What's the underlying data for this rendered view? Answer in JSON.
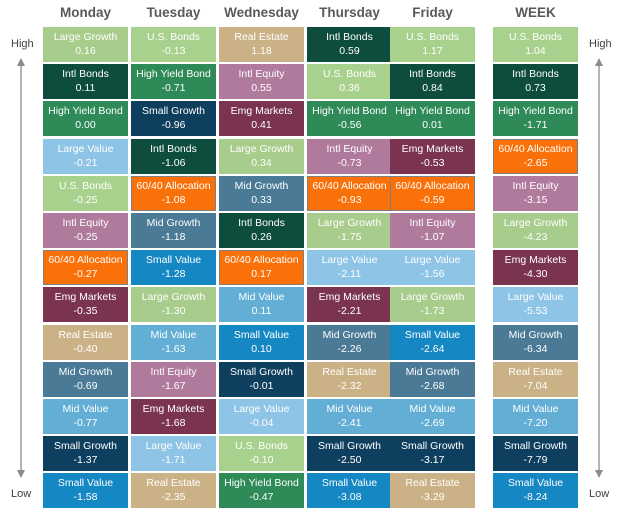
{
  "chart_data": {
    "type": "table",
    "columns": [
      "Monday",
      "Tuesday",
      "Wednesday",
      "Thursday",
      "Friday",
      "WEEK"
    ],
    "axis_labels": {
      "top": "High",
      "bottom": "Low"
    },
    "colors": {
      "Large Growth": {
        "bg": "#a8cc8c",
        "fg": "#ffffff"
      },
      "U.S. Bonds": {
        "bg": "#a9d18e",
        "fg": "#ffffff"
      },
      "Intl Bonds": {
        "bg": "#0e4d3d",
        "fg": "#ffffff"
      },
      "High Yield Bond": {
        "bg": "#2e8a57",
        "fg": "#ffffff"
      },
      "Large Value": {
        "bg": "#8ec4e6",
        "fg": "#ffffff"
      },
      "Intl Equity": {
        "bg": "#b07a9c",
        "fg": "#ffffff"
      },
      "60/40 Allocation": {
        "bg": "#fa7109",
        "fg": "#ffffff"
      },
      "Emg Markets": {
        "bg": "#7a3450",
        "fg": "#ffffff"
      },
      "Real Estate": {
        "bg": "#cbb286",
        "fg": "#ffffff"
      },
      "Mid Growth": {
        "bg": "#4a7a96",
        "fg": "#ffffff"
      },
      "Mid Value": {
        "bg": "#62aed4",
        "fg": "#ffffff"
      },
      "Small Growth": {
        "bg": "#0f3f5e",
        "fg": "#ffffff"
      },
      "Small Value": {
        "bg": "#1587c3",
        "fg": "#ffffff"
      }
    },
    "cells": [
      [
        [
          "Large Growth",
          "0.16"
        ],
        [
          "Intl Bonds",
          "0.11"
        ],
        [
          "High Yield Bond",
          "0.00"
        ],
        [
          "Large Value",
          "-0.21"
        ],
        [
          "U.S. Bonds",
          "-0.25"
        ],
        [
          "Intl Equity",
          "-0.25"
        ],
        [
          "60/40 Allocation",
          "-0.27"
        ],
        [
          "Emg Markets",
          "-0.35"
        ],
        [
          "Real Estate",
          "-0.40"
        ],
        [
          "Mid Growth",
          "-0.69"
        ],
        [
          "Mid Value",
          "-0.77"
        ],
        [
          "Small Growth",
          "-1.37"
        ],
        [
          "Small Value",
          "-1.58"
        ]
      ],
      [
        [
          "U.S. Bonds",
          "-0.13"
        ],
        [
          "High Yield Bond",
          "-0.71"
        ],
        [
          "Small Growth",
          "-0.96"
        ],
        [
          "Intl Bonds",
          "-1.06"
        ],
        [
          "60/40 Allocation",
          "-1.08"
        ],
        [
          "Mid Growth",
          "-1.18"
        ],
        [
          "Small Value",
          "-1.28"
        ],
        [
          "Large Growth",
          "-1.30"
        ],
        [
          "Mid Value",
          "-1.63"
        ],
        [
          "Intl Equity",
          "-1.67"
        ],
        [
          "Emg Markets",
          "-1.68"
        ],
        [
          "Large Value",
          "-1.71"
        ],
        [
          "Real Estate",
          "-2.35"
        ]
      ],
      [
        [
          "Real Estate",
          "1.18"
        ],
        [
          "Intl Equity",
          "0.55"
        ],
        [
          "Emg Markets",
          "0.41"
        ],
        [
          "Large Growth",
          "0.34"
        ],
        [
          "Mid Growth",
          "0.33"
        ],
        [
          "Intl Bonds",
          "0.26"
        ],
        [
          "60/40 Allocation",
          "0.17"
        ],
        [
          "Mid Value",
          "0.11"
        ],
        [
          "Small Value",
          "0.10"
        ],
        [
          "Small Growth",
          "-0.01"
        ],
        [
          "Large Value",
          "-0.04"
        ],
        [
          "U.S. Bonds",
          "-0.10"
        ],
        [
          "High Yield Bond",
          "-0.47"
        ]
      ],
      [
        [
          "Intl Bonds",
          "0.59"
        ],
        [
          "U.S. Bonds",
          "0.36"
        ],
        [
          "High Yield Bond",
          "-0.56"
        ],
        [
          "Intl Equity",
          "-0.73"
        ],
        [
          "60/40 Allocation",
          "-0.93"
        ],
        [
          "Large Growth",
          "-1.75"
        ],
        [
          "Large Value",
          "-2.11"
        ],
        [
          "Emg Markets",
          "-2.21"
        ],
        [
          "Mid Growth",
          "-2.26"
        ],
        [
          "Real Estate",
          "-2.32"
        ],
        [
          "Mid Value",
          "-2.41"
        ],
        [
          "Small Growth",
          "-2.50"
        ],
        [
          "Small Value",
          "-3.08"
        ]
      ],
      [
        [
          "U.S. Bonds",
          "1.17"
        ],
        [
          "Intl Bonds",
          "0.84"
        ],
        [
          "High Yield Bond",
          "0.01"
        ],
        [
          "Emg Markets",
          "-0.53"
        ],
        [
          "60/40 Allocation",
          "-0.59"
        ],
        [
          "Intl Equity",
          "-1.07"
        ],
        [
          "Large Value",
          "-1.56"
        ],
        [
          "Large Growth",
          "-1.73"
        ],
        [
          "Small Value",
          "-2.64"
        ],
        [
          "Mid Growth",
          "-2.68"
        ],
        [
          "Mid Value",
          "-2.69"
        ],
        [
          "Small Growth",
          "-3.17"
        ],
        [
          "Real Estate",
          "-3.29"
        ]
      ],
      [
        [
          "U.S. Bonds",
          "1.04"
        ],
        [
          "Intl Bonds",
          "0.73"
        ],
        [
          "High Yield Bond",
          "-1.71"
        ],
        [
          "60/40 Allocation",
          "-2.65"
        ],
        [
          "Intl Equity",
          "-3.15"
        ],
        [
          "Large Growth",
          "-4.23"
        ],
        [
          "Emg Markets",
          "-4.30"
        ],
        [
          "Large Value",
          "-5.53"
        ],
        [
          "Mid Growth",
          "-6.34"
        ],
        [
          "Real Estate",
          "-7.04"
        ],
        [
          "Mid Value",
          "-7.20"
        ],
        [
          "Small Growth",
          "-7.79"
        ],
        [
          "Small Value",
          "-8.24"
        ]
      ]
    ],
    "highlighted_asset": "60/40 Allocation"
  }
}
